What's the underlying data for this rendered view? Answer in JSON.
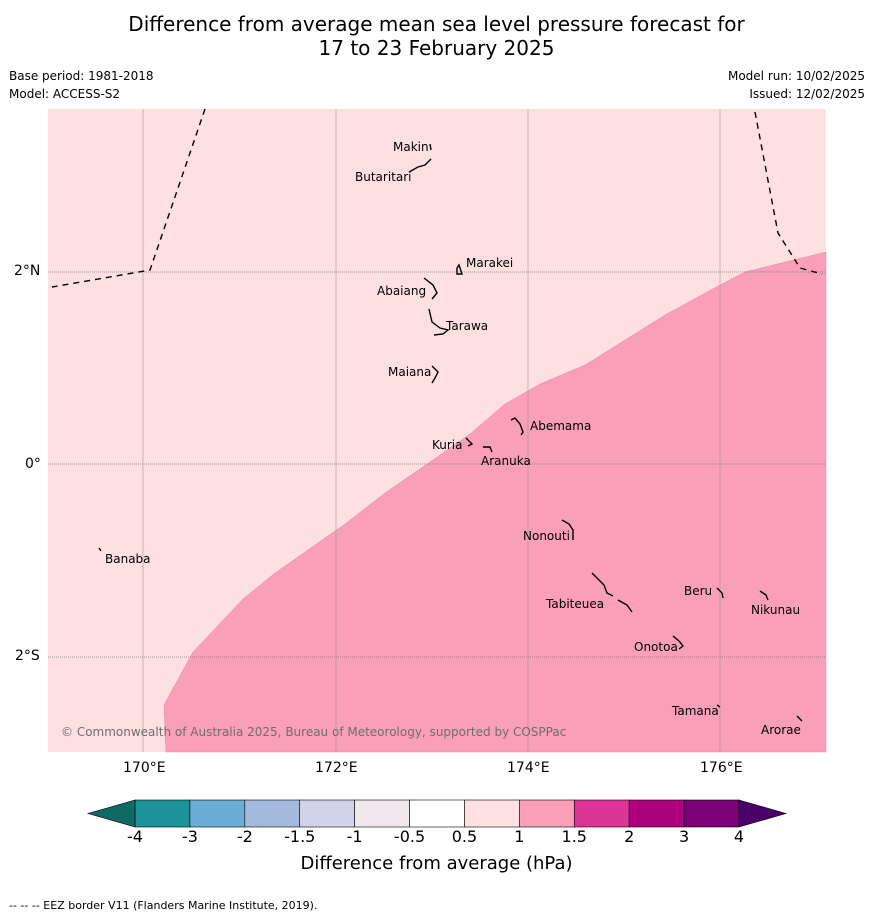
{
  "title_line1": "Difference from average mean sea level pressure forecast for",
  "title_line2": "17 to 23 February 2025",
  "base_period": "Base period: 1981-2018",
  "model": "Model: ACCESS-S2",
  "model_run": "Model run: 10/02/2025",
  "issued": "Issued: 12/02/2025",
  "lon_labels": [
    "170°E",
    "172°E",
    "174°E",
    "176°E"
  ],
  "lat_labels": [
    "2°N",
    "0°",
    "2°S"
  ],
  "places": [
    "Makin",
    "Butaritari",
    "Marakei",
    "Abaiang",
    "Tarawa",
    "Maiana",
    "Abemama",
    "Kuria",
    "Aranuka",
    "Nonouti",
    "Banaba",
    "Tabiteuea",
    "Beru",
    "Nikunau",
    "Onotoa",
    "Tamana",
    "Arorae"
  ],
  "copyright": "© Commonwealth of Australia 2025, Bureau of Meteorology, supported by COSPPac",
  "colorbar": {
    "ticks": [
      "-4",
      "-3",
      "-2",
      "-1.5",
      "-1",
      "-0.5",
      "0.5",
      "1",
      "1.5",
      "2",
      "3",
      "4"
    ],
    "colors": [
      "#1b9399",
      "#6aaed6",
      "#a4badc",
      "#d3d3e8",
      "#efe9ee",
      "#ffffff",
      "#fde0df",
      "#f99fb7",
      "#dd3497",
      "#ae017e",
      "#7a0177"
    ],
    "under_color": "#0e6b63",
    "over_color": "#49006a",
    "label": "Difference from average (hPa)"
  },
  "map_colors": {
    "light": "#fde0df",
    "medium": "#f99fb7"
  },
  "footnote": "--  --  -- EEZ border V11 (Flanders Marine Institute, 2019)."
}
